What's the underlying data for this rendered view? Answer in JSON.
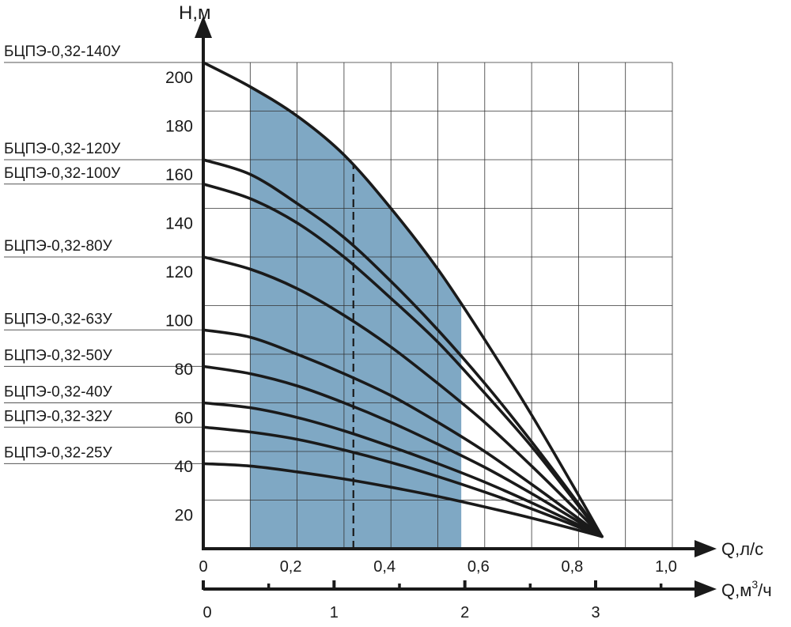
{
  "chart_data": {
    "type": "line",
    "y_axis_label": "H,м",
    "x_axis_label": "Q,л/с",
    "x2_axis_label_main": "Q,м",
    "x2_axis_label_sup": "3",
    "x2_axis_label_tail": "/ч",
    "xlim": [
      0,
      1.0
    ],
    "ylim": [
      0,
      200
    ],
    "grid": true,
    "x_ticks": [
      "0",
      "0,2",
      "0,4",
      "0,6",
      "0,8",
      "1,0"
    ],
    "x_tick_values": [
      0,
      0.2,
      0.4,
      0.6,
      0.8,
      1.0
    ],
    "y_ticks": [
      "20",
      "40",
      "60",
      "80",
      "100",
      "120",
      "140",
      "160",
      "180",
      "200"
    ],
    "y_tick_values": [
      20,
      40,
      60,
      80,
      100,
      120,
      140,
      160,
      180,
      200
    ],
    "x2_ticks": [
      "0",
      "1",
      "2",
      "3"
    ],
    "x2_tick_values": [
      0,
      1,
      2,
      3
    ],
    "x2_minor_tick_values": [
      0.5,
      1.5,
      2.5,
      3.5
    ],
    "shaded_region": {
      "x_from": 0.1,
      "x_to": 0.55,
      "under_series": "БЦПЭ-0,32-140У",
      "color": "#7fa8c4"
    },
    "dashed_line_x": 0.32,
    "curve_color": "#1a1a1a",
    "x": [
      0,
      0.1,
      0.2,
      0.3,
      0.4,
      0.5,
      0.6,
      0.7,
      0.8,
      0.85
    ],
    "series": [
      {
        "name": "БЦПЭ-0,32-140У",
        "values": [
          200,
          190,
          178,
          162,
          140,
          115,
          86,
          55,
          22,
          5
        ]
      },
      {
        "name": "БЦПЭ-0,32-120У",
        "values": [
          160,
          154,
          142,
          128,
          110,
          90,
          68,
          44,
          18.5,
          5
        ]
      },
      {
        "name": "БЦПЭ-0,32-100У",
        "values": [
          150,
          144,
          134,
          120,
          103,
          85,
          64,
          42,
          17.6,
          5
        ]
      },
      {
        "name": "БЦПЭ-0,32-80У",
        "values": [
          120,
          115,
          107,
          96,
          83,
          68,
          52,
          34,
          15,
          5
        ]
      },
      {
        "name": "БЦПЭ-0,32-63У",
        "values": [
          90,
          87,
          80,
          72,
          63,
          52,
          40,
          26.5,
          12.4,
          5
        ]
      },
      {
        "name": "БЦПЭ-0,32-50У",
        "values": [
          75,
          72,
          67,
          60,
          52,
          43,
          33.5,
          22.7,
          11.1,
          5
        ]
      },
      {
        "name": "БЦПЭ-0,32-40У",
        "values": [
          60,
          58,
          54,
          48.5,
          42,
          35,
          27.4,
          18.9,
          9.8,
          5
        ]
      },
      {
        "name": "БЦПЭ-0,32-32У",
        "values": [
          50,
          48,
          45,
          40.6,
          35.5,
          29.7,
          23.3,
          16.4,
          8.9,
          5
        ]
      },
      {
        "name": "БЦПЭ-0,32-25У",
        "values": [
          35,
          34,
          31.6,
          28.7,
          25.3,
          21.5,
          17.2,
          12.6,
          7.6,
          5
        ]
      }
    ]
  }
}
